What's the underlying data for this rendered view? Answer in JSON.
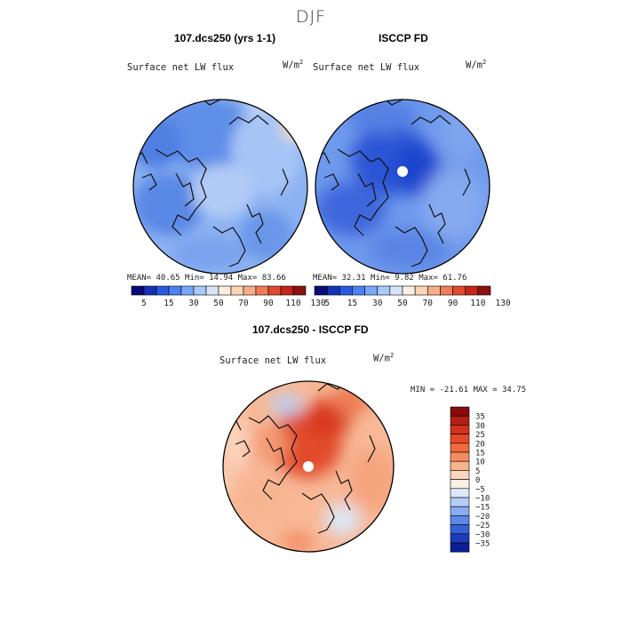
{
  "figure": {
    "season": "DJF",
    "panel_top_left": {
      "title": "107.dcs250 (yrs 1-1)",
      "variable": "Surface net LW flux",
      "units": "W/m",
      "units_exp": "2",
      "stats": "MEAN=  40.65  Min=  14.94  Max=  83.66"
    },
    "panel_top_right": {
      "title": "ISCCP FD",
      "variable": "Surface net LW flux",
      "units": "W/m",
      "units_exp": "2",
      "stats": "MEAN=  32.31  Min=   9.82  Max=  61.76"
    },
    "panel_bottom": {
      "title": "107.dcs250 - ISCCP FD",
      "variable": "Surface net LW flux",
      "units": "W/m",
      "units_exp": "2",
      "stats": "MIN = -21.61 MAX =  34.75"
    }
  },
  "chart_data": [
    {
      "type": "heatmap",
      "title": "107.dcs250 (yrs 1-1)",
      "subtitle": "Surface net LW flux",
      "units": "W/m2",
      "projection": "north polar stereographic",
      "mean": 40.65,
      "min": 14.94,
      "max": 83.66,
      "colorbar_levels": [
        5,
        15,
        30,
        50,
        70,
        90,
        110,
        130
      ],
      "colorbar_colors": [
        "#0a0a78",
        "#1432b4",
        "#2a5ae0",
        "#4c82f0",
        "#7aa8f8",
        "#a9c8fb",
        "#d6e4fb",
        "#fbeee1",
        "#fcd4b8",
        "#f8ad8a",
        "#ef7d58",
        "#e04a2e",
        "#c4241a",
        "#8c1010"
      ]
    },
    {
      "type": "heatmap",
      "title": "ISCCP FD",
      "subtitle": "Surface net LW flux",
      "units": "W/m2",
      "projection": "north polar stereographic",
      "mean": 32.31,
      "min": 9.82,
      "max": 61.76,
      "colorbar_levels": [
        5,
        15,
        30,
        50,
        70,
        90,
        110,
        130
      ],
      "colorbar_colors": [
        "#0a0a78",
        "#1432b4",
        "#2a5ae0",
        "#4c82f0",
        "#7aa8f8",
        "#a9c8fb",
        "#d6e4fb",
        "#fbeee1",
        "#fcd4b8",
        "#f8ad8a",
        "#ef7d58",
        "#e04a2e",
        "#c4241a",
        "#8c1010"
      ]
    },
    {
      "type": "heatmap",
      "title": "107.dcs250 - ISCCP FD",
      "subtitle": "Surface net LW flux",
      "units": "W/m2",
      "projection": "north polar stereographic",
      "min": -21.61,
      "max": 34.75,
      "colorbar_levels": [
        35,
        30,
        25,
        20,
        15,
        10,
        5,
        0,
        -5,
        -10,
        -15,
        -20,
        -25,
        -30,
        -35
      ],
      "colorbar_colors": [
        "#8c0a0a",
        "#b41e14",
        "#d2321e",
        "#e44a28",
        "#f06a3c",
        "#f58c60",
        "#f8b28e",
        "#fcd6bc",
        "#fbf0e6",
        "#dce8fa",
        "#b4ccf6",
        "#88acf0",
        "#5c88e6",
        "#3460d8",
        "#1c3cbc",
        "#0c1e96"
      ]
    }
  ]
}
